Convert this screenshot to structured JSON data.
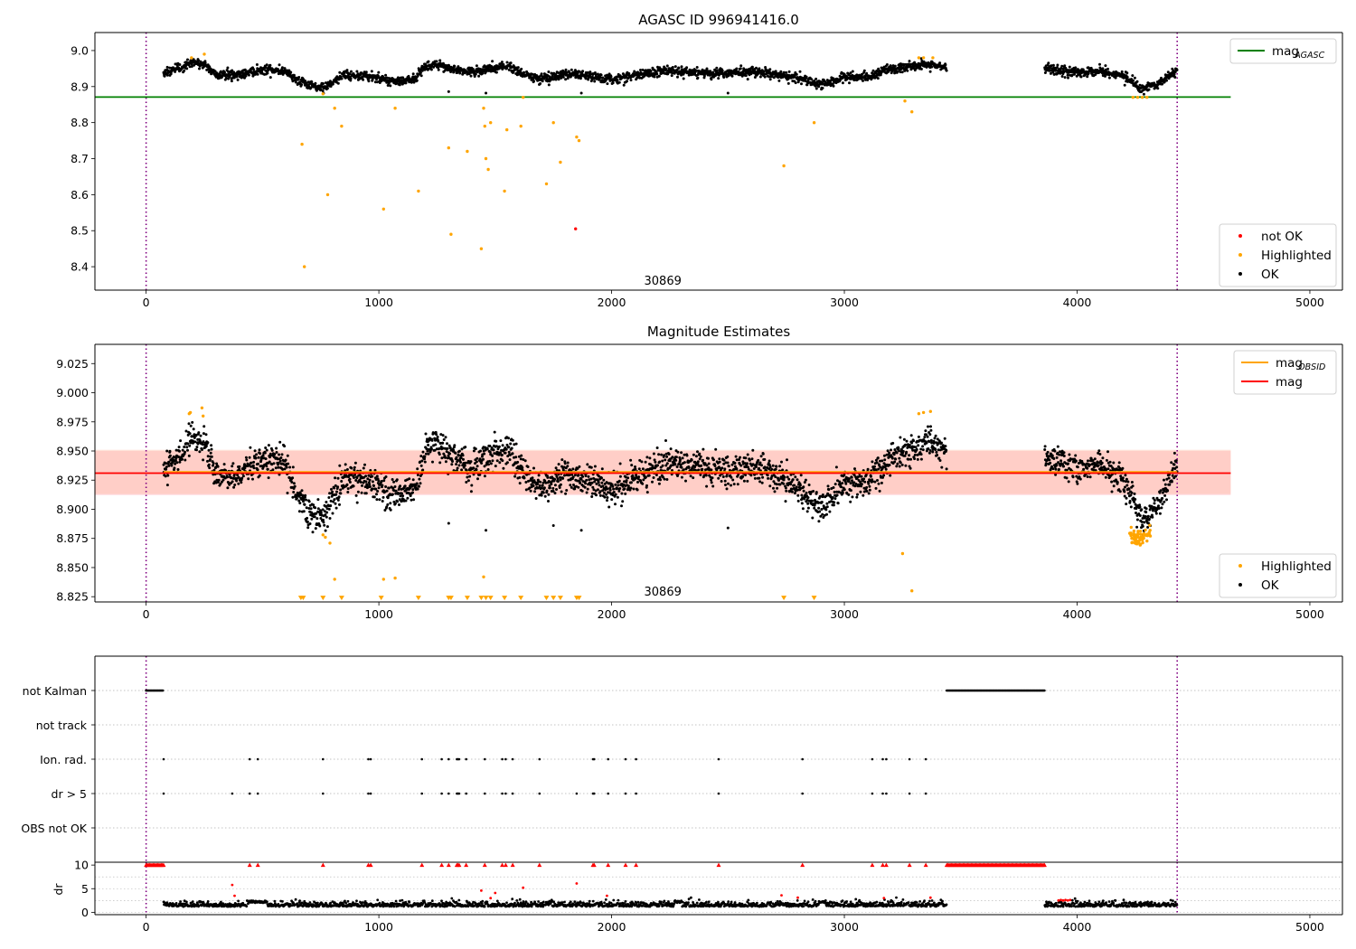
{
  "chart_data": [
    {
      "id": "agasc",
      "type": "scatter",
      "title": "AGASC ID 996941416.0",
      "xlim": [
        -220,
        5140
      ],
      "ylim": [
        8.335,
        9.05
      ],
      "xticks": [
        0,
        1000,
        2000,
        3000,
        4000,
        5000
      ],
      "xtick_labels": [
        "0",
        "1000",
        "2000",
        "3000",
        "4000",
        "5000"
      ],
      "yticks": [
        8.4,
        8.5,
        8.6,
        8.7,
        8.8,
        8.9,
        9.0
      ],
      "ytick_labels": [
        "8.4",
        "8.5",
        "8.6",
        "8.7",
        "8.8",
        "8.9",
        "9.0"
      ],
      "vlines": [
        0,
        4430
      ],
      "annotation": {
        "text": "30869",
        "x": 2220,
        "y": 8.36
      },
      "reference_lines": [
        {
          "name": "mag_AGASC",
          "y": 8.871,
          "x": [
            -220,
            4660
          ],
          "color": "#008000"
        }
      ],
      "legend_top": [
        {
          "label": "mag",
          "subscript": "AGASC",
          "color": "#008000",
          "kind": "line"
        }
      ],
      "legend_bottom": [
        {
          "label": "not OK",
          "color": "#ff0000",
          "kind": "dot"
        },
        {
          "label": "Highlighted",
          "color": "#ffa500",
          "kind": "dot"
        },
        {
          "label": "OK",
          "color": "#000000",
          "kind": "dot"
        }
      ],
      "series": [
        {
          "name": "OK",
          "color": "#000000",
          "generator": "ok_lightcurve"
        },
        {
          "name": "Highlighted",
          "color": "#ffa500",
          "x": [
            195,
            250,
            670,
            680,
            760,
            780,
            810,
            840,
            1020,
            1070,
            1170,
            1300,
            1310,
            1380,
            1440,
            1450,
            1455,
            1460,
            1470,
            1480,
            1540,
            1550,
            1610,
            1620,
            1720,
            1750,
            1780,
            1850,
            1860,
            2740,
            2870,
            3260,
            3290,
            3320,
            3340,
            3380,
            4240,
            4260,
            4280,
            4300
          ],
          "y": [
            8.98,
            8.99,
            8.74,
            8.4,
            8.88,
            8.6,
            8.84,
            8.79,
            8.56,
            8.84,
            8.61,
            8.73,
            8.49,
            8.72,
            8.45,
            8.84,
            8.79,
            8.7,
            8.67,
            8.8,
            8.61,
            8.78,
            8.79,
            8.87,
            8.63,
            8.8,
            8.69,
            8.76,
            8.75,
            8.68,
            8.8,
            8.86,
            8.83,
            8.98,
            8.98,
            8.98,
            8.87,
            8.87,
            8.87,
            8.87
          ]
        },
        {
          "name": "not OK",
          "color": "#ff0000",
          "x": [
            1845
          ],
          "y": [
            8.505
          ]
        }
      ]
    },
    {
      "id": "estimates",
      "type": "scatter",
      "title": "Magnitude Estimates",
      "xlim": [
        -220,
        5140
      ],
      "ylim": [
        8.8205,
        9.0415
      ],
      "xticks": [
        0,
        1000,
        2000,
        3000,
        4000,
        5000
      ],
      "xtick_labels": [
        "0",
        "1000",
        "2000",
        "3000",
        "4000",
        "5000"
      ],
      "yticks": [
        8.825,
        8.85,
        8.875,
        8.9,
        8.925,
        8.95,
        8.975,
        9.0,
        9.025
      ],
      "ytick_labels": [
        "8.825",
        "8.850",
        "8.875",
        "8.900",
        "8.925",
        "8.950",
        "8.975",
        "9.000",
        "9.025"
      ],
      "vlines": [
        0,
        4430
      ],
      "annotation": {
        "text": "30869",
        "x": 2220,
        "y": 8.829
      },
      "bands": [
        {
          "y": [
            8.912,
            8.95
          ],
          "x": [
            -220,
            4660
          ],
          "color": "#ffc0cb",
          "opacity": 0.45
        },
        {
          "y": [
            8.913,
            8.951
          ],
          "x": [
            -220,
            4660
          ],
          "color": "#ffa07a",
          "opacity": 0.3
        }
      ],
      "reference_lines": [
        {
          "name": "mag_OBSID",
          "y": 8.932,
          "x": [
            75,
            4430
          ],
          "color": "#ffa500"
        },
        {
          "name": "mag",
          "y": 8.931,
          "x": [
            -220,
            4660
          ],
          "color": "#ff0000"
        }
      ],
      "legend_top": [
        {
          "label": "mag",
          "subscript": "OBSID",
          "color": "#ffa500",
          "kind": "line"
        },
        {
          "label": "mag",
          "subscript": "",
          "color": "#ff0000",
          "kind": "line"
        }
      ],
      "legend_bottom": [
        {
          "label": "Highlighted",
          "color": "#ffa500",
          "kind": "dot"
        },
        {
          "label": "OK",
          "color": "#000000",
          "kind": "dot"
        }
      ],
      "series": [
        {
          "name": "OK",
          "color": "#000000",
          "generator": "ok_lightcurve"
        },
        {
          "name": "Highlighted",
          "color": "#ffa500",
          "x": [
            185,
            190,
            240,
            245,
            760,
            770,
            790,
            810,
            1020,
            1070,
            1450,
            3250,
            3290,
            3320,
            3340,
            3370
          ],
          "y": [
            8.982,
            8.983,
            8.987,
            8.98,
            8.878,
            8.876,
            8.871,
            8.84,
            8.84,
            8.841,
            8.842,
            8.862,
            8.83,
            8.982,
            8.983,
            8.984
          ]
        },
        {
          "name": "Highlighted (cluster)",
          "color": "#ffa500",
          "generator": "orange_cluster"
        },
        {
          "name": "Below range",
          "color": "#ffa500",
          "marker": "triangle-down",
          "y_at": 8.8235,
          "x": [
            665,
            675,
            760,
            840,
            1010,
            1170,
            1300,
            1310,
            1380,
            1440,
            1460,
            1480,
            1540,
            1610,
            1720,
            1750,
            1780,
            1850,
            1860,
            2740,
            2870
          ]
        }
      ]
    },
    {
      "id": "flags",
      "type": "scatter",
      "title": "",
      "xlim": [
        -220,
        5140
      ],
      "vlines": [
        0,
        4430
      ],
      "rows": [
        "not Kalman",
        "not track",
        "Ion. rad.",
        "dr > 5",
        "OBS not OK"
      ],
      "series": [
        {
          "row": "not Kalman",
          "color": "#000000",
          "ranges": [
            [
              0,
              75
            ],
            [
              3440,
              3860
            ]
          ]
        },
        {
          "row": "not track",
          "color": "#000000",
          "x": []
        },
        {
          "row": "Ion. rad.",
          "color": "#000000",
          "x": [
            75,
            445,
            480,
            760,
            955,
            965,
            1185,
            1270,
            1300,
            1335,
            1340,
            1345,
            1375,
            1455,
            1530,
            1545,
            1575,
            1690,
            1920,
            1925,
            1985,
            2060,
            2105,
            2460,
            2820,
            3120,
            3165,
            3180,
            3280,
            3350
          ]
        },
        {
          "row": "dr > 5",
          "color": "#000000",
          "x": [
            75,
            370,
            445,
            480,
            760,
            955,
            965,
            1185,
            1270,
            1300,
            1335,
            1340,
            1345,
            1375,
            1455,
            1530,
            1545,
            1575,
            1690,
            1850,
            1920,
            1925,
            1985,
            2060,
            2105,
            2460,
            2820,
            3120,
            3165,
            3180,
            3280,
            3350
          ]
        },
        {
          "row": "OBS not OK",
          "color": "#000000",
          "x": []
        }
      ]
    },
    {
      "id": "dr",
      "type": "scatter",
      "title": "",
      "ylabel": "dr",
      "xlim": [
        -220,
        5140
      ],
      "ylim": [
        -0.5,
        10.6
      ],
      "xticks": [
        0,
        1000,
        2000,
        3000,
        4000,
        5000
      ],
      "xtick_labels": [
        "0",
        "1000",
        "2000",
        "3000",
        "4000",
        "5000"
      ],
      "yticks": [
        0,
        5,
        10
      ],
      "ytick_labels": [
        "0",
        "5",
        "10"
      ],
      "vlines": [
        0,
        4430
      ],
      "series": [
        {
          "name": "dr",
          "color": "#000000",
          "generator": "dr_noise"
        },
        {
          "name": "dr not OK",
          "color": "#ff0000",
          "x": [
            370,
            380,
            1440,
            1480,
            1500,
            1620,
            1850,
            1980,
            2730,
            2800,
            3170,
            3370,
            3920,
            3930,
            3940,
            3950,
            3960,
            3970
          ],
          "y": [
            5.8,
            3.5,
            4.6,
            3.0,
            4.1,
            5.2,
            6.1,
            3.5,
            3.6,
            3.1,
            3.0,
            3.1,
            2.5,
            2.6,
            2.5,
            2.6,
            2.5,
            2.6
          ]
        },
        {
          "name": "clipped",
          "color": "#ff0000",
          "marker": "triangle-up",
          "y_at": 10,
          "x": [
            445,
            480,
            760,
            955,
            965,
            1185,
            1270,
            1300,
            1335,
            1340,
            1345,
            1375,
            1455,
            1530,
            1545,
            1575,
            1690,
            1920,
            1925,
            1985,
            2060,
            2105,
            2460,
            2820,
            3120,
            3165,
            3180,
            3280,
            3350
          ],
          "ranges": [
            [
              0,
              75
            ],
            [
              3440,
              3860
            ]
          ]
        }
      ]
    }
  ],
  "ok_lightcurve_model": {
    "x_range": [
      75,
      4430
    ],
    "gap": [
      3440,
      3860
    ],
    "baseline": 8.931,
    "anchors_x": [
      75,
      150,
      200,
      250,
      300,
      400,
      500,
      600,
      650,
      700,
      760,
      850,
      950,
      1050,
      1150,
      1200,
      1250,
      1320,
      1400,
      1500,
      1560,
      1620,
      1700,
      1800,
      1900,
      2000,
      2100,
      2250,
      2400,
      2500,
      2600,
      2800,
      2900,
      3000,
      3100,
      3200,
      3300,
      3350,
      3440,
      3860,
      4000,
      4100,
      4200,
      4280,
      4350,
      4430
    ],
    "anchors_y": [
      8.935,
      8.948,
      8.962,
      8.958,
      8.928,
      8.93,
      8.944,
      8.94,
      8.914,
      8.898,
      8.892,
      8.928,
      8.925,
      8.912,
      8.915,
      8.952,
      8.958,
      8.945,
      8.935,
      8.948,
      8.952,
      8.93,
      8.918,
      8.93,
      8.925,
      8.915,
      8.928,
      8.94,
      8.935,
      8.932,
      8.938,
      8.92,
      8.902,
      8.922,
      8.925,
      8.945,
      8.952,
      8.958,
      8.948,
      8.945,
      8.935,
      8.94,
      8.925,
      8.89,
      8.905,
      8.94
    ]
  }
}
